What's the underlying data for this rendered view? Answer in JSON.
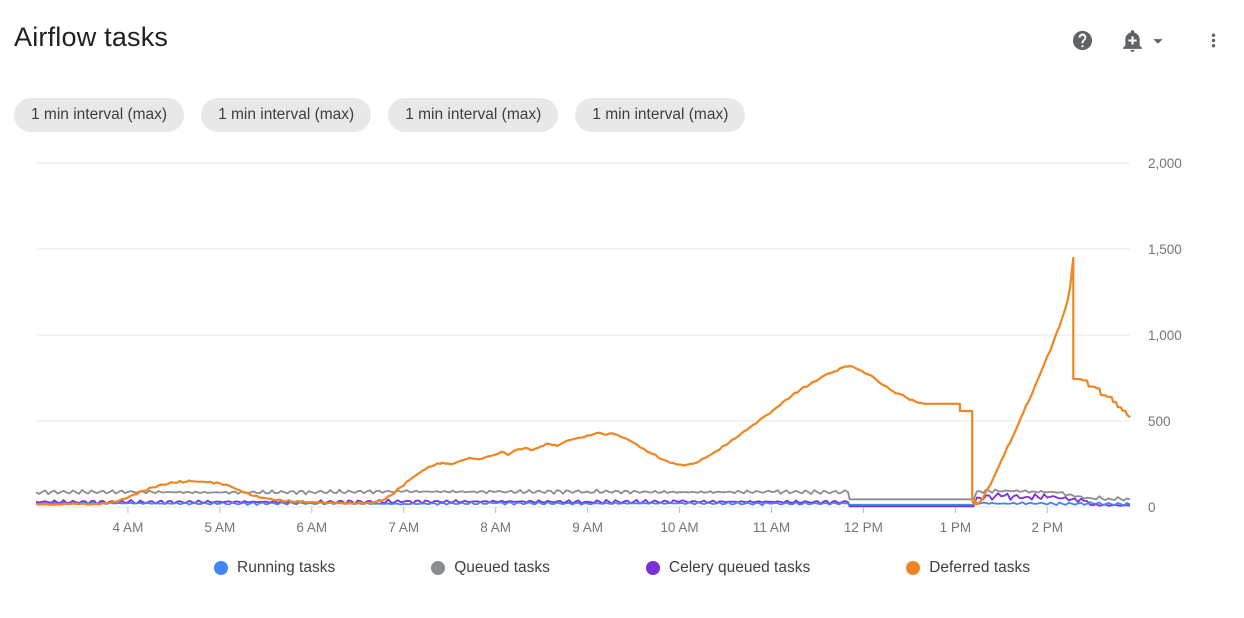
{
  "header": {
    "title": "Airflow tasks",
    "actions": [
      {
        "icon": "help-icon"
      },
      {
        "icon": "add-alert-icon"
      },
      {
        "icon": "chevron-down-icon"
      },
      {
        "icon": "more-vert-icon"
      }
    ]
  },
  "filters": {
    "chips": [
      {
        "label": "1 min interval (max)"
      },
      {
        "label": "1 min interval (max)"
      },
      {
        "label": "1 min interval (max)"
      },
      {
        "label": "1 min interval (max)"
      }
    ]
  },
  "chart_data": {
    "type": "line",
    "title": "Airflow tasks",
    "grid": true,
    "legend_position": "bottom",
    "x_axis": {
      "unit": "time-of-day",
      "domain_minutes": [
        180,
        894
      ],
      "ticks": [
        {
          "t": 240,
          "label": "4 AM"
        },
        {
          "t": 300,
          "label": "5 AM"
        },
        {
          "t": 360,
          "label": "6 AM"
        },
        {
          "t": 420,
          "label": "7 AM"
        },
        {
          "t": 480,
          "label": "8 AM"
        },
        {
          "t": 540,
          "label": "9 AM"
        },
        {
          "t": 600,
          "label": "10 AM"
        },
        {
          "t": 660,
          "label": "11 AM"
        },
        {
          "t": 720,
          "label": "12 PM"
        },
        {
          "t": 780,
          "label": "1 PM"
        },
        {
          "t": 840,
          "label": "2 PM"
        }
      ]
    },
    "y_axis": {
      "min": 0,
      "max": 2000,
      "side": "right",
      "ticks": [
        0,
        500,
        1000,
        1500,
        2000
      ],
      "tick_labels": [
        "0",
        "500",
        "1,000",
        "1,500",
        "2,000"
      ]
    },
    "draw_order": [
      1,
      2,
      0,
      3
    ],
    "series": [
      {
        "name": "Running tasks",
        "color": "#4285F4",
        "stroke_width": 1.8,
        "segments": [
          {
            "noise": 9,
            "points": [
              [
                180,
                20
              ],
              [
                240,
                22
              ],
              [
                300,
                19
              ],
              [
                360,
                22
              ],
              [
                420,
                18
              ],
              [
                480,
                22
              ],
              [
                540,
                20
              ],
              [
                600,
                22
              ],
              [
                660,
                19
              ],
              [
                710,
                20
              ]
            ]
          },
          {
            "noise": 0,
            "points": [
              [
                711,
                13
              ],
              [
                792,
                13
              ]
            ]
          },
          {
            "noise": 10,
            "points": [
              [
                794,
                24
              ],
              [
                810,
                20
              ],
              [
                830,
                22
              ],
              [
                850,
                18
              ],
              [
                870,
                20
              ],
              [
                894,
                15
              ]
            ]
          }
        ]
      },
      {
        "name": "Queued tasks",
        "color": "#8A8D90",
        "stroke_width": 1.8,
        "segments": [
          {
            "noise": 13,
            "points": [
              [
                180,
                86
              ],
              [
                240,
                88
              ],
              [
                300,
                84
              ],
              [
                360,
                87
              ],
              [
                420,
                90
              ],
              [
                480,
                88
              ],
              [
                540,
                90
              ],
              [
                600,
                86
              ],
              [
                660,
                88
              ],
              [
                710,
                86
              ]
            ]
          },
          {
            "noise": 0,
            "points": [
              [
                711,
                45
              ],
              [
                792,
                45
              ]
            ]
          },
          {
            "noise": 17,
            "points": [
              [
                794,
                90
              ],
              [
                812,
                95
              ],
              [
                830,
                90
              ],
              [
                848,
                85
              ],
              [
                858,
                60
              ],
              [
                868,
                52
              ],
              [
                880,
                50
              ],
              [
                894,
                44
              ]
            ]
          }
        ]
      },
      {
        "name": "Celery queued tasks",
        "color": "#7C2ED9",
        "stroke_width": 1.8,
        "segments": [
          {
            "noise": 13,
            "points": [
              [
                180,
                30
              ],
              [
                240,
                28
              ],
              [
                300,
                30
              ],
              [
                360,
                29
              ],
              [
                420,
                31
              ],
              [
                480,
                32
              ],
              [
                540,
                30
              ],
              [
                600,
                31
              ],
              [
                660,
                30
              ],
              [
                710,
                28
              ]
            ]
          },
          {
            "noise": 0,
            "points": [
              [
                711,
                4
              ],
              [
                792,
                4
              ]
            ]
          },
          {
            "noise": 26,
            "points": [
              [
                794,
                55
              ],
              [
                810,
                62
              ],
              [
                826,
                58
              ],
              [
                842,
                60
              ],
              [
                856,
                45
              ],
              [
                866,
                35
              ]
            ]
          },
          {
            "noise": 5,
            "points": [
              [
                868,
                12
              ],
              [
                894,
                9
              ]
            ]
          }
        ]
      },
      {
        "name": "Deferred tasks",
        "color": "#EF8621",
        "stroke_width": 2.2,
        "segments": [
          {
            "noise": 6,
            "points": [
              [
                180,
                18
              ],
              [
                192,
                13
              ],
              [
                204,
                20
              ],
              [
                216,
                15
              ],
              [
                226,
                20
              ],
              [
                232,
                30
              ],
              [
                240,
                55
              ],
              [
                250,
                95
              ],
              [
                260,
                125
              ],
              [
                270,
                142
              ],
              [
                281,
                150
              ],
              [
                292,
                145
              ],
              [
                300,
                138
              ],
              [
                307,
                120
              ],
              [
                314,
                92
              ],
              [
                322,
                65
              ],
              [
                331,
                48
              ],
              [
                341,
                36
              ],
              [
                352,
                30
              ],
              [
                364,
                26
              ],
              [
                376,
                22
              ],
              [
                388,
                20
              ],
              [
                398,
                25
              ],
              [
                406,
                38
              ],
              [
                412,
                70
              ],
              [
                418,
                115
              ],
              [
                425,
                165
              ],
              [
                432,
                210
              ],
              [
                438,
                236
              ],
              [
                445,
                258
              ],
              [
                451,
                248
              ],
              [
                457,
                268
              ],
              [
                463,
                286
              ],
              [
                469,
                278
              ],
              [
                475,
                294
              ],
              [
                480,
                306
              ],
              [
                484,
                322
              ],
              [
                488,
                302
              ],
              [
                493,
                330
              ],
              [
                499,
                343
              ],
              [
                504,
                331
              ],
              [
                509,
                351
              ],
              [
                515,
                367
              ],
              [
                520,
                354
              ],
              [
                526,
                383
              ],
              [
                532,
                397
              ],
              [
                538,
                407
              ],
              [
                544,
                424
              ],
              [
                548,
                432
              ],
              [
                552,
                419
              ],
              [
                556,
                429
              ],
              [
                562,
                407
              ],
              [
                568,
                384
              ],
              [
                575,
                345
              ],
              [
                582,
                309
              ],
              [
                590,
                273
              ],
              [
                597,
                251
              ],
              [
                603,
                241
              ],
              [
                610,
                256
              ],
              [
                617,
                286
              ],
              [
                624,
                325
              ],
              [
                632,
                371
              ],
              [
                640,
                425
              ],
              [
                648,
                477
              ],
              [
                655,
                523
              ],
              [
                661,
                561
              ],
              [
                667,
                606
              ],
              [
                673,
                645
              ],
              [
                679,
                683
              ],
              [
                685,
                713
              ],
              [
                691,
                743
              ],
              [
                696,
                772
              ],
              [
                701,
                788
              ],
              [
                706,
                809
              ],
              [
                711,
                821
              ],
              [
                715,
                807
              ],
              [
                719,
                791
              ],
              [
                723,
                771
              ],
              [
                727,
                751
              ],
              [
                731,
                719
              ],
              [
                735,
                701
              ],
              [
                738,
                679
              ],
              [
                741,
                661
              ],
              [
                744,
                656
              ],
              [
                747,
                641
              ],
              [
                750,
                623
              ],
              [
                754,
                613
              ],
              [
                757,
                605
              ],
              [
                760,
                600
              ]
            ]
          },
          {
            "noise": 0,
            "points": [
              [
                760,
                600
              ],
              [
                783,
                600
              ],
              [
                783,
                558
              ],
              [
                791,
                558
              ],
              [
                791,
                45
              ],
              [
                792,
                16
              ],
              [
                793,
                38
              ],
              [
                794,
                15
              ],
              [
                796,
                28
              ]
            ]
          },
          {
            "noise": 8,
            "points": [
              [
                796,
                28
              ],
              [
                803,
                130
              ],
              [
                810,
                270
              ],
              [
                817,
                400
              ],
              [
                824,
                540
              ],
              [
                831,
                680
              ],
              [
                838,
                830
              ],
              [
                844,
                960
              ],
              [
                849,
                1080
              ],
              [
                853,
                1190
              ],
              [
                855,
                1280
              ],
              [
                856,
                1370
              ],
              [
                857,
                1448
              ]
            ]
          },
          {
            "noise": 0,
            "points": [
              [
                857,
                745
              ],
              [
                862,
                743
              ],
              [
                863,
                737
              ],
              [
                866,
                735
              ],
              [
                867,
                701
              ],
              [
                871,
                699
              ],
              [
                872,
                691
              ],
              [
                874,
                689
              ],
              [
                875,
                651
              ],
              [
                878,
                649
              ],
              [
                879,
                641
              ],
              [
                882,
                639
              ],
              [
                883,
                611
              ],
              [
                885,
                609
              ],
              [
                886,
                581
              ],
              [
                888,
                579
              ],
              [
                889,
                561
              ],
              [
                891,
                559
              ],
              [
                892,
                537
              ],
              [
                894,
                521
              ]
            ]
          }
        ]
      }
    ]
  },
  "style": {
    "grid_color": "#E9EAEC",
    "tick_color": "#BDBDBD",
    "axis_label_color": "#757575"
  }
}
